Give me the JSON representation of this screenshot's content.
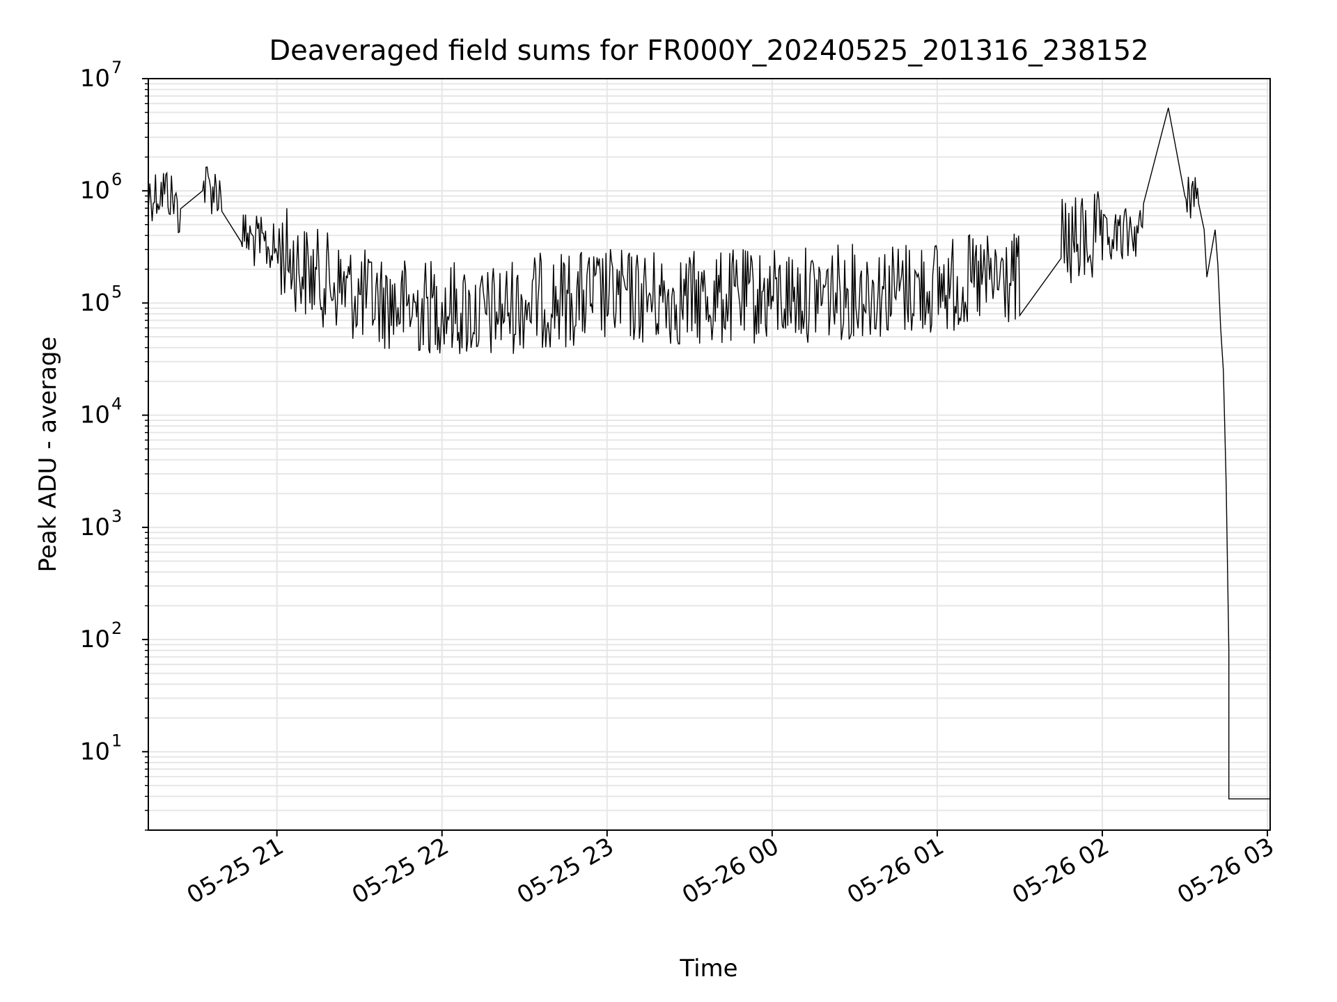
{
  "chart_data": {
    "type": "line",
    "title": "Deaveraged field sums for FR000Y_20240525_201316_238152",
    "xlabel": "Time",
    "ylabel": "Peak ADU - average",
    "xlim": [
      "2024-05-25 20:13:16",
      "2024-05-26 03:01:00"
    ],
    "ylim": [
      2,
      10000000
    ],
    "yscale": "log",
    "grid": true,
    "line_color": "#000000",
    "grid_color": "#e6e6e6",
    "x_tick_labels": [
      "05-25 21",
      "05-25 22",
      "05-25 23",
      "05-26 00",
      "05-26 01",
      "05-26 02",
      "05-26 03"
    ],
    "x_tick_values": [
      "2024-05-25 21:00",
      "2024-05-25 22:00",
      "2024-05-25 23:00",
      "2024-05-26 00:00",
      "2024-05-26 01:00",
      "2024-05-26 02:00",
      "2024-05-26 03:00"
    ],
    "y_tick_labels": [
      {
        "base": "10",
        "exp": "1",
        "value": 10
      },
      {
        "base": "10",
        "exp": "2",
        "value": 100
      },
      {
        "base": "10",
        "exp": "3",
        "value": 1000
      },
      {
        "base": "10",
        "exp": "4",
        "value": 10000
      },
      {
        "base": "10",
        "exp": "5",
        "value": 100000
      },
      {
        "base": "10",
        "exp": "6",
        "value": 1000000
      },
      {
        "base": "10",
        "exp": "7",
        "value": 10000000
      }
    ],
    "series": [
      {
        "values": [
          {
            "x": "2024-05-25 20:13",
            "y": 800000
          },
          {
            "x": "2024-05-25 20:20",
            "y": 900000
          },
          {
            "x": "2024-05-25 20:25",
            "y": 550000
          },
          {
            "x": "2024-05-25 20:33",
            "y": 1000000
          },
          {
            "x": "2024-05-25 20:40",
            "y": 850000
          },
          {
            "x": "2024-05-25 20:47",
            "y": 350000
          },
          {
            "x": "2024-05-25 20:53",
            "y": 300000
          },
          {
            "x": "2024-05-25 21:00",
            "y": 250000
          },
          {
            "x": "2024-05-25 21:10",
            "y": 150000
          },
          {
            "x": "2024-05-25 21:20",
            "y": 120000
          },
          {
            "x": "2024-05-25 21:30",
            "y": 90000
          },
          {
            "x": "2024-05-25 21:40",
            "y": 80000
          },
          {
            "x": "2024-05-25 21:50",
            "y": 70000
          },
          {
            "x": "2024-05-25 22:00",
            "y": 75000
          },
          {
            "x": "2024-05-25 22:15",
            "y": 60000
          },
          {
            "x": "2024-05-25 22:30",
            "y": 80000
          },
          {
            "x": "2024-05-25 23:00",
            "y": 90000
          },
          {
            "x": "2024-05-25 23:30",
            "y": 85000
          },
          {
            "x": "2024-05-26 00:00",
            "y": 90000
          },
          {
            "x": "2024-05-26 00:30",
            "y": 100000
          },
          {
            "x": "2024-05-26 01:00",
            "y": 110000
          },
          {
            "x": "2024-05-26 01:30",
            "y": 130000
          },
          {
            "x": "2024-05-26 01:45",
            "y": 250000
          },
          {
            "x": "2024-05-26 02:00",
            "y": 300000
          },
          {
            "x": "2024-05-26 02:15",
            "y": 400000
          },
          {
            "x": "2024-05-26 02:24",
            "y": 5500000
          },
          {
            "x": "2024-05-26 02:30",
            "y": 900000
          },
          {
            "x": "2024-05-26 02:35",
            "y": 800000
          },
          {
            "x": "2024-05-26 02:37",
            "y": 450000
          },
          {
            "x": "2024-05-26 02:38",
            "y": 170000
          },
          {
            "x": "2024-05-26 02:41",
            "y": 450000
          },
          {
            "x": "2024-05-26 02:42",
            "y": 220000
          },
          {
            "x": "2024-05-26 02:43",
            "y": 60000
          },
          {
            "x": "2024-05-26 02:44",
            "y": 25000
          },
          {
            "x": "2024-05-26 02:45",
            "y": 2500
          },
          {
            "x": "2024-05-26 02:46",
            "y": 80
          },
          {
            "x": "2024-05-26 02:46",
            "y": 3.8
          },
          {
            "x": "2024-05-26 03:01",
            "y": 3.8
          }
        ]
      }
    ]
  }
}
